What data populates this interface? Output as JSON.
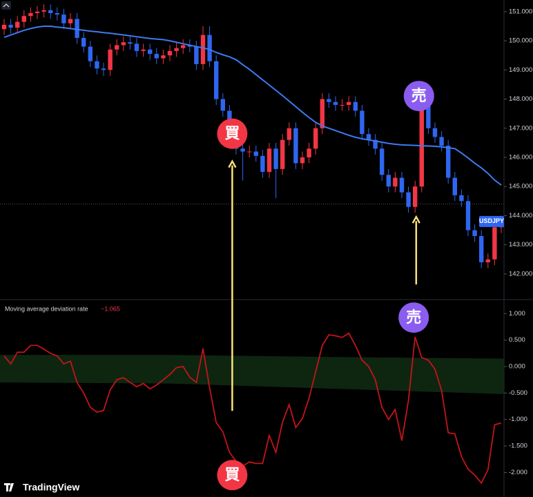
{
  "brand": "TradingView",
  "chart_data": [
    {
      "type": "candlestick",
      "symbol_label": "USDJPY",
      "up_color": "#f23645",
      "down_color": "#2f66f0",
      "ylim": [
        141.12,
        151.4
      ],
      "yticks": [
        {
          "value": 151,
          "label": "151.000"
        },
        {
          "value": 150,
          "label": "150.000"
        },
        {
          "value": 149,
          "label": "149.000"
        },
        {
          "value": 148,
          "label": "148.000"
        },
        {
          "value": 147,
          "label": "147.000"
        },
        {
          "value": 146,
          "label": "146.000"
        },
        {
          "value": 145,
          "label": "145.000"
        },
        {
          "value": 144,
          "label": "144.000"
        },
        {
          "value": 143,
          "label": "143.000"
        },
        {
          "value": 142,
          "label": "142.000"
        }
      ],
      "reference_line": 144.4,
      "open": [
        150.4,
        150.55,
        150.45,
        150.65,
        150.85,
        150.95,
        151.0,
        151.05,
        150.95,
        150.9,
        150.6,
        150.75,
        150.1,
        149.8,
        149.3,
        149.05,
        149.0,
        149.7,
        149.85,
        149.95,
        149.9,
        149.65,
        149.7,
        149.55,
        149.4,
        149.5,
        149.65,
        149.75,
        149.85,
        149.8,
        149.2,
        150.2,
        149.3,
        148.0,
        147.6,
        146.8,
        146.3,
        146.2,
        146.2,
        146.05,
        145.5,
        146.3,
        145.6,
        146.6,
        147.0,
        145.8,
        146.0,
        146.3,
        147.0,
        148.0,
        147.9,
        147.8,
        147.8,
        147.9,
        147.6,
        146.8,
        146.6,
        146.3,
        145.4,
        145.0,
        145.3,
        144.8,
        144.3,
        145.0,
        148.0,
        147.0,
        146.7,
        146.4,
        145.3,
        144.7,
        144.5,
        143.5,
        143.3,
        142.4,
        142.5,
        143.6
      ],
      "high": [
        150.75,
        150.75,
        150.85,
        151.05,
        151.15,
        151.2,
        151.25,
        151.25,
        151.15,
        151.1,
        150.95,
        150.95,
        150.3,
        150.0,
        149.5,
        149.25,
        149.9,
        150.05,
        150.15,
        150.15,
        150.1,
        149.9,
        149.9,
        149.75,
        149.7,
        149.85,
        149.95,
        150.05,
        150.05,
        150.0,
        150.5,
        150.5,
        149.5,
        148.2,
        147.8,
        147.0,
        146.5,
        146.4,
        146.4,
        146.25,
        146.5,
        146.5,
        146.8,
        147.2,
        147.2,
        146.2,
        146.5,
        147.2,
        148.2,
        148.2,
        148.1,
        148.0,
        148.1,
        148.1,
        147.8,
        147.0,
        146.8,
        146.5,
        145.6,
        145.5,
        145.5,
        145.0,
        145.2,
        148.2,
        148.2,
        147.2,
        146.9,
        146.6,
        145.5,
        144.9,
        144.7,
        143.7,
        143.5,
        142.7,
        143.8,
        144.0
      ],
      "low": [
        150.2,
        150.25,
        150.25,
        150.45,
        150.65,
        150.75,
        150.8,
        150.75,
        150.7,
        150.4,
        150.4,
        149.9,
        149.6,
        149.1,
        148.85,
        148.8,
        148.8,
        149.5,
        149.65,
        149.7,
        149.45,
        149.45,
        149.35,
        149.2,
        149.2,
        149.3,
        149.45,
        149.55,
        149.6,
        149.0,
        149.0,
        149.1,
        147.8,
        147.4,
        146.6,
        146.1,
        145.2,
        146.0,
        145.85,
        145.3,
        145.3,
        144.6,
        145.4,
        146.4,
        145.6,
        145.6,
        145.8,
        146.1,
        146.8,
        147.7,
        147.6,
        147.6,
        147.6,
        147.4,
        146.6,
        146.4,
        146.1,
        145.2,
        144.8,
        144.8,
        144.6,
        144.1,
        144.1,
        144.8,
        146.8,
        146.5,
        146.2,
        145.1,
        144.5,
        144.3,
        143.3,
        143.1,
        142.2,
        142.2,
        142.3,
        143.4
      ],
      "close": [
        150.55,
        150.45,
        150.65,
        150.85,
        150.95,
        151.0,
        151.05,
        150.95,
        150.9,
        150.6,
        150.75,
        150.1,
        149.8,
        149.3,
        149.05,
        149.0,
        149.7,
        149.85,
        149.95,
        149.9,
        149.65,
        149.7,
        149.55,
        149.4,
        149.5,
        149.65,
        149.75,
        149.85,
        149.8,
        149.2,
        150.2,
        149.3,
        148.0,
        147.6,
        146.8,
        146.3,
        146.2,
        146.2,
        146.05,
        145.5,
        146.3,
        145.6,
        146.6,
        147.0,
        145.8,
        146.0,
        146.3,
        147.0,
        148.0,
        147.9,
        147.8,
        147.8,
        147.9,
        147.6,
        146.8,
        146.6,
        146.3,
        145.4,
        145.0,
        145.3,
        144.8,
        144.3,
        145.0,
        148.0,
        147.0,
        146.7,
        146.4,
        145.3,
        144.7,
        144.5,
        143.5,
        143.3,
        142.4,
        142.5,
        143.6,
        143.8
      ],
      "ma": {
        "color": "#3d7bf2",
        "values": [
          150.12,
          150.2,
          150.28,
          150.36,
          150.42,
          150.47,
          150.5,
          150.5,
          150.47,
          150.45,
          150.42,
          150.39,
          150.36,
          150.33,
          150.31,
          150.28,
          150.26,
          150.23,
          150.2,
          150.17,
          150.14,
          150.11,
          150.08,
          150.06,
          150.04,
          150.0,
          149.95,
          149.9,
          149.85,
          149.8,
          149.76,
          149.7,
          149.6,
          149.52,
          149.45,
          149.35,
          149.18,
          149.02,
          148.84,
          148.66,
          148.48,
          148.3,
          148.12,
          147.93,
          147.74,
          147.55,
          147.37,
          147.2,
          147.08,
          147.0,
          146.92,
          146.84,
          146.76,
          146.69,
          146.64,
          146.6,
          146.56,
          146.52,
          146.48,
          146.45,
          146.43,
          146.42,
          146.41,
          146.4,
          146.39,
          146.38,
          146.36,
          146.33,
          146.3,
          146.15,
          145.98,
          145.8,
          145.64,
          145.45,
          145.22,
          145.05
        ]
      },
      "annotations": [
        {
          "label": "買",
          "candle": 34,
          "color": "#f23645"
        },
        {
          "label": "売",
          "candle": 63,
          "color": "#8b5cf0"
        }
      ]
    },
    {
      "type": "line",
      "title": "Moving average deviation rate",
      "current_label": "−1.065",
      "color": "#c4141a",
      "ylim": [
        -2.464,
        1.265
      ],
      "yticks": [
        {
          "value": 1,
          "label": "1.000"
        },
        {
          "value": 0.5,
          "label": "0.500"
        },
        {
          "value": 0,
          "label": "0.000"
        },
        {
          "value": -0.5,
          "label": "-0.500"
        },
        {
          "value": -1,
          "label": "-1.000"
        },
        {
          "value": -1.5,
          "label": "-1.500"
        },
        {
          "value": -2,
          "label": "-2.000"
        }
      ],
      "band": {
        "color": "#0f2a12",
        "upper": [
          0.22,
          0.22,
          0.18,
          0.15
        ],
        "lower": [
          -0.3,
          -0.32,
          -0.42,
          -0.52
        ]
      },
      "values": [
        0.2,
        0.05,
        0.27,
        0.27,
        0.4,
        0.4,
        0.33,
        0.25,
        0.2,
        0.05,
        0.1,
        -0.3,
        -0.5,
        -0.77,
        -0.86,
        -0.83,
        -0.44,
        -0.25,
        -0.21,
        -0.3,
        -0.38,
        -0.32,
        -0.42,
        -0.35,
        -0.25,
        -0.15,
        -0.02,
        0.0,
        -0.2,
        -0.3,
        0.34,
        -0.4,
        -1.06,
        -1.23,
        -1.62,
        -1.79,
        -1.88,
        -1.8,
        -1.83,
        -1.83,
        -1.3,
        -1.62,
        -1.05,
        -0.72,
        -1.15,
        -0.98,
        -0.6,
        -0.1,
        0.4,
        0.6,
        0.58,
        0.55,
        0.63,
        0.4,
        0.12,
        0.0,
        -0.25,
        -0.77,
        -1.0,
        -0.81,
        -1.4,
        -0.64,
        0.56,
        0.17,
        0.12,
        -0.05,
        -0.45,
        -1.25,
        -1.27,
        -1.7,
        -1.94,
        -2.05,
        -2.2,
        -1.95,
        -1.1,
        -1.065
      ],
      "annotations": [
        {
          "label": "売",
          "candle": 62,
          "color": "#8b5cf0"
        },
        {
          "label": "買",
          "candle": 34,
          "color": "#f23645"
        }
      ]
    }
  ]
}
